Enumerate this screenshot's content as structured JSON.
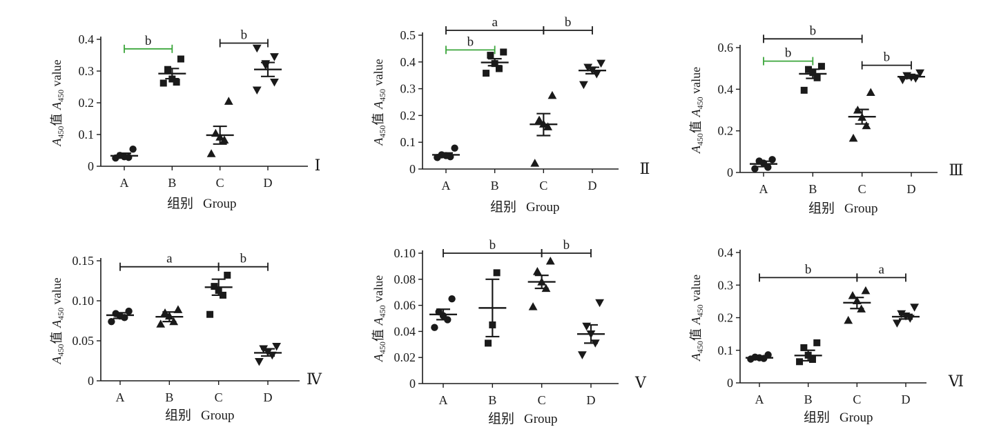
{
  "colors": {
    "ink": "#1a1a1a",
    "highlight": "#3aa53a"
  },
  "chart_data": [
    {
      "type": "scatter",
      "panel_label": "Ⅰ",
      "categories": [
        "A",
        "B",
        "C",
        "D"
      ],
      "xlabel_cn": "组别",
      "xlabel_en": "Group",
      "ylabel_pre": "A",
      "ylabel_sub": "450",
      "ylabel_mid": "值 ",
      "ylabel_post": " value",
      "ylim": [
        0,
        0.4
      ],
      "yticks": [
        0,
        0.1,
        0.2,
        0.3,
        0.4
      ],
      "ytick_labels": [
        "0",
        "0.1",
        "0.2",
        "0.3",
        "0.4"
      ],
      "series": [
        {
          "category": "A",
          "marker": "circle",
          "points": [
            0.026,
            0.028,
            0.03,
            0.034,
            0.054
          ],
          "mean": 0.033,
          "err": [
            0.027,
            0.041
          ]
        },
        {
          "category": "B",
          "marker": "square",
          "points": [
            0.262,
            0.265,
            0.275,
            0.305,
            0.338
          ],
          "mean": 0.292,
          "err": [
            0.276,
            0.308
          ]
        },
        {
          "category": "C",
          "marker": "triangle-up",
          "points": [
            0.04,
            0.083,
            0.092,
            0.104,
            0.205
          ],
          "mean": 0.098,
          "err": [
            0.07,
            0.126
          ]
        },
        {
          "category": "D",
          "marker": "triangle-down",
          "points": [
            0.24,
            0.265,
            0.318,
            0.323,
            0.345,
            0.372
          ],
          "mean": 0.305,
          "err": [
            0.283,
            0.327
          ]
        }
      ],
      "significance": [
        {
          "from": "A",
          "to": "B",
          "label": "b",
          "color": "highlight",
          "ends": "bars",
          "y": 0.37
        },
        {
          "from": "C",
          "to": "D",
          "label": "b",
          "color": "ink",
          "ends": "bars",
          "y": 0.388
        }
      ]
    },
    {
      "type": "scatter",
      "panel_label": "Ⅱ",
      "categories": [
        "A",
        "B",
        "C",
        "D"
      ],
      "xlabel_cn": "组别",
      "xlabel_en": "Group",
      "ylabel_pre": "A",
      "ylabel_sub": "450",
      "ylabel_mid": "值 ",
      "ylabel_post": " value",
      "ylim": [
        0,
        0.5
      ],
      "yticks": [
        0,
        0.1,
        0.2,
        0.3,
        0.4,
        0.5
      ],
      "ytick_labels": [
        "0",
        "0.1",
        "0.2",
        "0.3",
        "0.4",
        "0.5"
      ],
      "series": [
        {
          "category": "A",
          "marker": "circle",
          "points": [
            0.043,
            0.046,
            0.05,
            0.053,
            0.078
          ],
          "mean": 0.053,
          "err": [
            0.046,
            0.06
          ]
        },
        {
          "category": "B",
          "marker": "square",
          "points": [
            0.358,
            0.375,
            0.394,
            0.425,
            0.437
          ],
          "mean": 0.398,
          "err": [
            0.386,
            0.412
          ]
        },
        {
          "category": "C",
          "marker": "triangle-up",
          "points": [
            0.022,
            0.158,
            0.168,
            0.183,
            0.275
          ],
          "mean": 0.167,
          "err": [
            0.125,
            0.207
          ]
        },
        {
          "category": "D",
          "marker": "triangle-down",
          "points": [
            0.315,
            0.355,
            0.37,
            0.38,
            0.395
          ],
          "mean": 0.368,
          "err": [
            0.356,
            0.38
          ]
        }
      ],
      "significance": [
        {
          "from": "A",
          "to": "C",
          "label": "a",
          "color": "ink",
          "ends": "bars",
          "y": 0.518
        },
        {
          "from": "C",
          "to": "D",
          "label": "b",
          "color": "ink",
          "ends": "bars",
          "y": 0.518
        },
        {
          "from": "A",
          "to": "B",
          "label": "b",
          "color": "highlight",
          "ends": "bars",
          "y": 0.445
        }
      ]
    },
    {
      "type": "scatter",
      "panel_label": "Ⅲ",
      "categories": [
        "A",
        "B",
        "C",
        "D"
      ],
      "xlabel_cn": "组别",
      "xlabel_en": "Group",
      "ylabel_pre": "A",
      "ylabel_sub": "450",
      "ylabel_mid": "值 ",
      "ylabel_post": " value",
      "ylim": [
        0,
        0.6
      ],
      "yticks": [
        0,
        0.2,
        0.4,
        0.6
      ],
      "ytick_labels": [
        "0",
        "0.2",
        "0.4",
        "0.6"
      ],
      "series": [
        {
          "category": "A",
          "marker": "circle",
          "points": [
            0.018,
            0.025,
            0.045,
            0.055,
            0.062
          ],
          "mean": 0.041,
          "err": [
            0.028,
            0.054
          ]
        },
        {
          "category": "B",
          "marker": "square",
          "points": [
            0.395,
            0.455,
            0.48,
            0.495,
            0.51
          ],
          "mean": 0.474,
          "err": [
            0.452,
            0.496
          ]
        },
        {
          "category": "C",
          "marker": "triangle-up",
          "points": [
            0.165,
            0.225,
            0.265,
            0.3,
            0.385
          ],
          "mean": 0.268,
          "err": [
            0.233,
            0.303
          ]
        },
        {
          "category": "D",
          "marker": "triangle-down",
          "points": [
            0.445,
            0.452,
            0.458,
            0.465,
            0.478
          ],
          "mean": 0.46,
          "err": [
            0.452,
            0.468
          ]
        }
      ],
      "significance": [
        {
          "from": "A",
          "to": "C",
          "label": "b",
          "color": "ink",
          "ends": "bars",
          "y": 0.642
        },
        {
          "from": "A",
          "to": "B",
          "label": "b",
          "color": "highlight",
          "ends": "bars",
          "y": 0.535
        },
        {
          "from": "C",
          "to": "D",
          "label": "b",
          "color": "ink",
          "ends": "bars",
          "y": 0.515
        }
      ]
    },
    {
      "type": "scatter",
      "panel_label": "Ⅳ",
      "categories": [
        "A",
        "B",
        "C",
        "D"
      ],
      "xlabel_cn": "组别",
      "xlabel_en": "Group",
      "ylabel_pre": "A",
      "ylabel_sub": "450",
      "ylabel_mid": "值 ",
      "ylabel_post": " value",
      "ylim": [
        0,
        0.15
      ],
      "yticks": [
        0,
        0.05,
        0.1,
        0.15
      ],
      "ytick_labels": [
        "0",
        "0.05",
        "0.10",
        "0.15"
      ],
      "series": [
        {
          "category": "A",
          "marker": "circle",
          "points": [
            0.074,
            0.079,
            0.081,
            0.084,
            0.087
          ],
          "mean": 0.082,
          "err": [
            0.078,
            0.085
          ]
        },
        {
          "category": "B",
          "marker": "triangle-up",
          "points": [
            0.071,
            0.074,
            0.081,
            0.085,
            0.089
          ],
          "mean": 0.08,
          "err": [
            0.074,
            0.086
          ]
        },
        {
          "category": "C",
          "marker": "square",
          "points": [
            0.083,
            0.107,
            0.113,
            0.118,
            0.132
          ],
          "mean": 0.117,
          "err": [
            0.107,
            0.127
          ]
        },
        {
          "category": "D",
          "marker": "triangle-down",
          "points": [
            0.024,
            0.032,
            0.036,
            0.04,
            0.043
          ],
          "mean": 0.035,
          "err": [
            0.031,
            0.04
          ]
        }
      ],
      "significance": [
        {
          "from": "A",
          "to": "C",
          "label": "a",
          "color": "ink",
          "ends": "bars",
          "y": 0.1425
        },
        {
          "from": "C",
          "to": "D",
          "label": "b",
          "color": "ink",
          "ends": "bars",
          "y": 0.1425
        }
      ]
    },
    {
      "type": "scatter",
      "panel_label": "Ⅴ",
      "categories": [
        "A",
        "B",
        "C",
        "D"
      ],
      "xlabel_cn": "组别",
      "xlabel_en": "Group",
      "ylabel_pre": "A",
      "ylabel_sub": "450",
      "ylabel_mid": "值 ",
      "ylabel_post": " value",
      "ylim": [
        0,
        0.1
      ],
      "yticks": [
        0,
        0.02,
        0.04,
        0.06,
        0.08,
        0.1
      ],
      "ytick_labels": [
        "0",
        "0.02",
        "0.04",
        "0.06",
        "0.08",
        "0.10"
      ],
      "series": [
        {
          "category": "A",
          "marker": "circle",
          "points": [
            0.043,
            0.049,
            0.052,
            0.055,
            0.065
          ],
          "mean": 0.053,
          "err": [
            0.049,
            0.057
          ]
        },
        {
          "category": "B",
          "marker": "square",
          "points": [
            0.031,
            0.045,
            0.085
          ],
          "mean": 0.058,
          "err": [
            0.036,
            0.08
          ]
        },
        {
          "category": "C",
          "marker": "triangle-up",
          "points": [
            0.059,
            0.073,
            0.078,
            0.086,
            0.094
          ],
          "mean": 0.078,
          "err": [
            0.073,
            0.083
          ]
        },
        {
          "category": "D",
          "marker": "triangle-down",
          "points": [
            0.022,
            0.031,
            0.038,
            0.044,
            0.062
          ],
          "mean": 0.038,
          "err": [
            0.031,
            0.045
          ]
        }
      ],
      "significance": [
        {
          "from": "A",
          "to": "C",
          "label": "b",
          "color": "ink",
          "ends": "bars",
          "y": 0.1
        },
        {
          "from": "C",
          "to": "D",
          "label": "b",
          "color": "ink",
          "ends": "bars",
          "y": 0.1
        }
      ]
    },
    {
      "type": "scatter",
      "panel_label": "Ⅵ",
      "categories": [
        "A",
        "B",
        "C",
        "D"
      ],
      "xlabel_cn": "组别",
      "xlabel_en": "Group",
      "ylabel_pre": "A",
      "ylabel_sub": "450",
      "ylabel_mid": "值 ",
      "ylabel_post": " value",
      "ylim": [
        0,
        0.4
      ],
      "yticks": [
        0,
        0.1,
        0.2,
        0.3,
        0.4
      ],
      "ytick_labels": [
        "0",
        "0.1",
        "0.2",
        "0.3",
        "0.4"
      ],
      "series": [
        {
          "category": "A",
          "marker": "circle",
          "points": [
            0.073,
            0.075,
            0.077,
            0.079,
            0.086
          ],
          "mean": 0.077,
          "err": [
            0.074,
            0.08
          ]
        },
        {
          "category": "B",
          "marker": "square",
          "points": [
            0.065,
            0.072,
            0.085,
            0.108,
            0.123
          ],
          "mean": 0.084,
          "err": [
            0.068,
            0.1
          ]
        },
        {
          "category": "C",
          "marker": "triangle-up",
          "points": [
            0.192,
            0.227,
            0.252,
            0.268,
            0.283
          ],
          "mean": 0.246,
          "err": [
            0.228,
            0.262
          ]
        },
        {
          "category": "D",
          "marker": "triangle-down",
          "points": [
            0.183,
            0.198,
            0.205,
            0.212,
            0.232
          ],
          "mean": 0.203,
          "err": [
            0.196,
            0.21
          ]
        }
      ],
      "significance": [
        {
          "from": "A",
          "to": "C",
          "label": "b",
          "color": "ink",
          "ends": "bars",
          "y": 0.323
        },
        {
          "from": "C",
          "to": "D",
          "label": "a",
          "color": "ink",
          "ends": "bars",
          "y": 0.323
        }
      ]
    }
  ]
}
